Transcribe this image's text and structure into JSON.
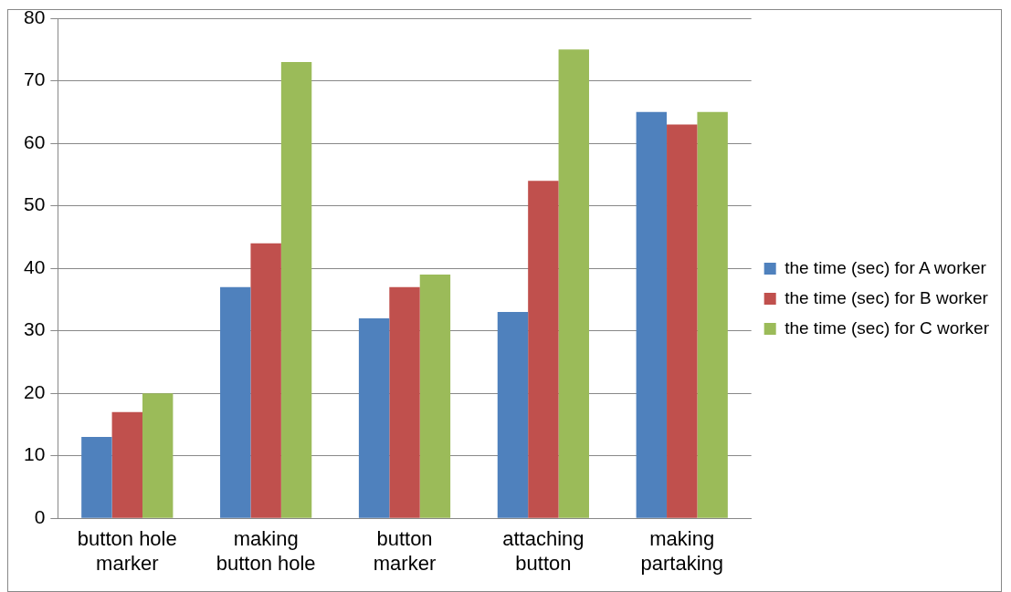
{
  "chart_data": {
    "type": "bar",
    "categories": [
      "button hole marker",
      "making button hole",
      "button marker",
      "attaching button",
      "making partaking"
    ],
    "series": [
      {
        "name": "the time (sec) for A worker",
        "color": "#4f81bd",
        "values": [
          13,
          37,
          32,
          33,
          65
        ]
      },
      {
        "name": "the time (sec) for B worker",
        "color": "#c0504d",
        "values": [
          17,
          44,
          37,
          54,
          63
        ]
      },
      {
        "name": "the time (sec) for C worker",
        "color": "#9bbb59",
        "values": [
          20,
          73,
          39,
          75,
          65
        ]
      }
    ],
    "ylim": [
      0,
      80
    ],
    "yticks": [
      0,
      10,
      20,
      30,
      40,
      50,
      60,
      70,
      80
    ],
    "grid": "y",
    "legend": "right"
  }
}
